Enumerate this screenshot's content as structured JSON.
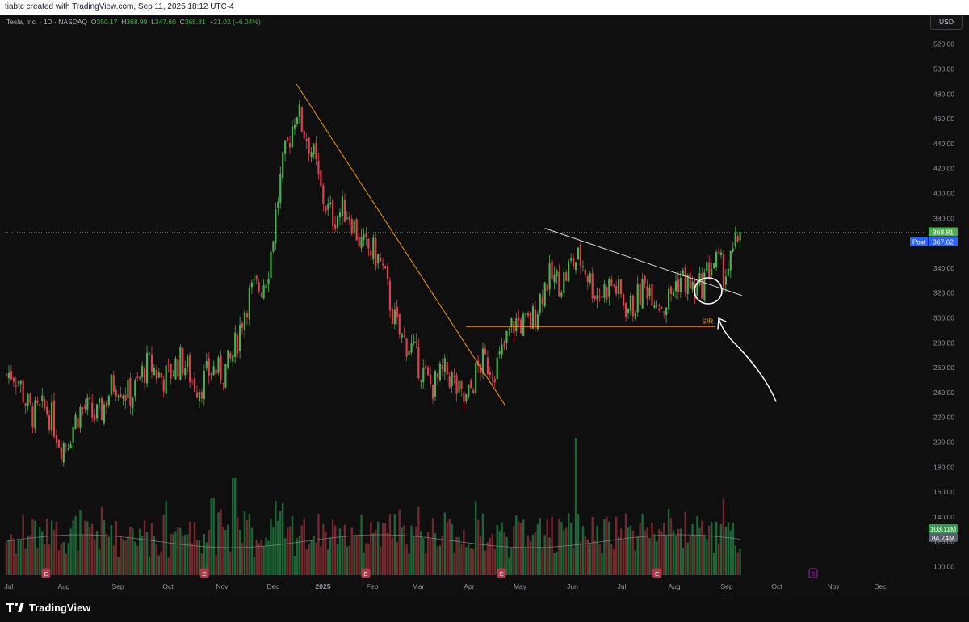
{
  "header": {
    "attribution": "tiabtc created with TradingView.com, Sep 11, 2025 18:12 UTC-4"
  },
  "legend": {
    "symbol": "Tesla, Inc. · 1D · NASDAQ",
    "open_label": "O",
    "open": "350.17",
    "high_label": "H",
    "high": "368.99",
    "low_label": "L",
    "low": "347.60",
    "close_label": "C",
    "close": "368.81",
    "change": "+21.02 (+6.04%)"
  },
  "currency": "USD",
  "price_axis": {
    "ticks": [
      "520.00",
      "500.00",
      "480.00",
      "460.00",
      "440.00",
      "420.00",
      "400.00",
      "380.00",
      "340.00",
      "320.00",
      "300.00",
      "280.00",
      "260.00",
      "240.00",
      "220.00",
      "200.00",
      "180.00",
      "160.00",
      "140.00",
      "120.00",
      "100.00"
    ]
  },
  "badges": {
    "last_price": "368.81",
    "post_label": "Post",
    "post_price": "367.62",
    "volume": "103.11M",
    "volume_ma": "84.74M"
  },
  "time_axis": {
    "labels": [
      "Jul",
      "Aug",
      "Sep",
      "Oct",
      "Nov",
      "Dec",
      "2025",
      "Feb",
      "Mar",
      "Apr",
      "May",
      "Jun",
      "Jul",
      "Aug",
      "Sep",
      "Oct",
      "Nov",
      "Dec"
    ]
  },
  "annotations": {
    "sr_label": "S/R",
    "earnings_marker": "E"
  },
  "brand": {
    "name": "TradingView"
  },
  "colors": {
    "up": "#26a69a",
    "down": "#ef5350",
    "up_candle": "#4caf50",
    "down_candle": "#e0404a",
    "trendline_orange": "#f7931a",
    "trendline_white": "#dddddd",
    "last_price_badge": "#4caf50",
    "post_badge": "#2962ff",
    "earnings": "#b23a48",
    "earnings_future": "#9c27b0"
  },
  "chart_data": {
    "type": "candlestick",
    "title": "Tesla, Inc. · 1D · NASDAQ",
    "ylim": [
      90,
      530
    ],
    "x_range": [
      "2024-07",
      "2025-12"
    ],
    "monthly_path": [
      {
        "x": "2024-07",
        "y": 255
      },
      {
        "x": "2024-08",
        "y": 205
      },
      {
        "x": "2024-09",
        "y": 240
      },
      {
        "x": "2024-10",
        "y": 260
      },
      {
        "x": "2024-11",
        "y": 250
      },
      {
        "x": "2024-12",
        "y": 350
      },
      {
        "x": "2024-12-17",
        "y": 479
      },
      {
        "x": "2025-01",
        "y": 400
      },
      {
        "x": "2025-02",
        "y": 360
      },
      {
        "x": "2025-03",
        "y": 260
      },
      {
        "x": "2025-04",
        "y": 240
      },
      {
        "x": "2025-05",
        "y": 290
      },
      {
        "x": "2025-06",
        "y": 345
      },
      {
        "x": "2025-07",
        "y": 315
      },
      {
        "x": "2025-08",
        "y": 320
      },
      {
        "x": "2025-09",
        "y": 340
      },
      {
        "x": "2025-09-11",
        "y": 368.81
      }
    ],
    "volume_series": "daily volume bars with moving average",
    "trendlines": [
      {
        "color": "orange",
        "from": {
          "x": "2024-12-17",
          "y": 488
        },
        "to": {
          "x": "2025-04-24",
          "y": 230
        }
      },
      {
        "color": "white",
        "from": {
          "x": "2025-05-17",
          "y": 372
        },
        "to": {
          "x": "2025-09-12",
          "y": 318
        }
      },
      {
        "color": "orange",
        "label": "S/R",
        "from": {
          "x": "2025-03-31",
          "y": 293
        },
        "to": {
          "x": "2025-08-26",
          "y": 293
        }
      }
    ],
    "last_price": 368.81,
    "post_price": 367.62
  }
}
